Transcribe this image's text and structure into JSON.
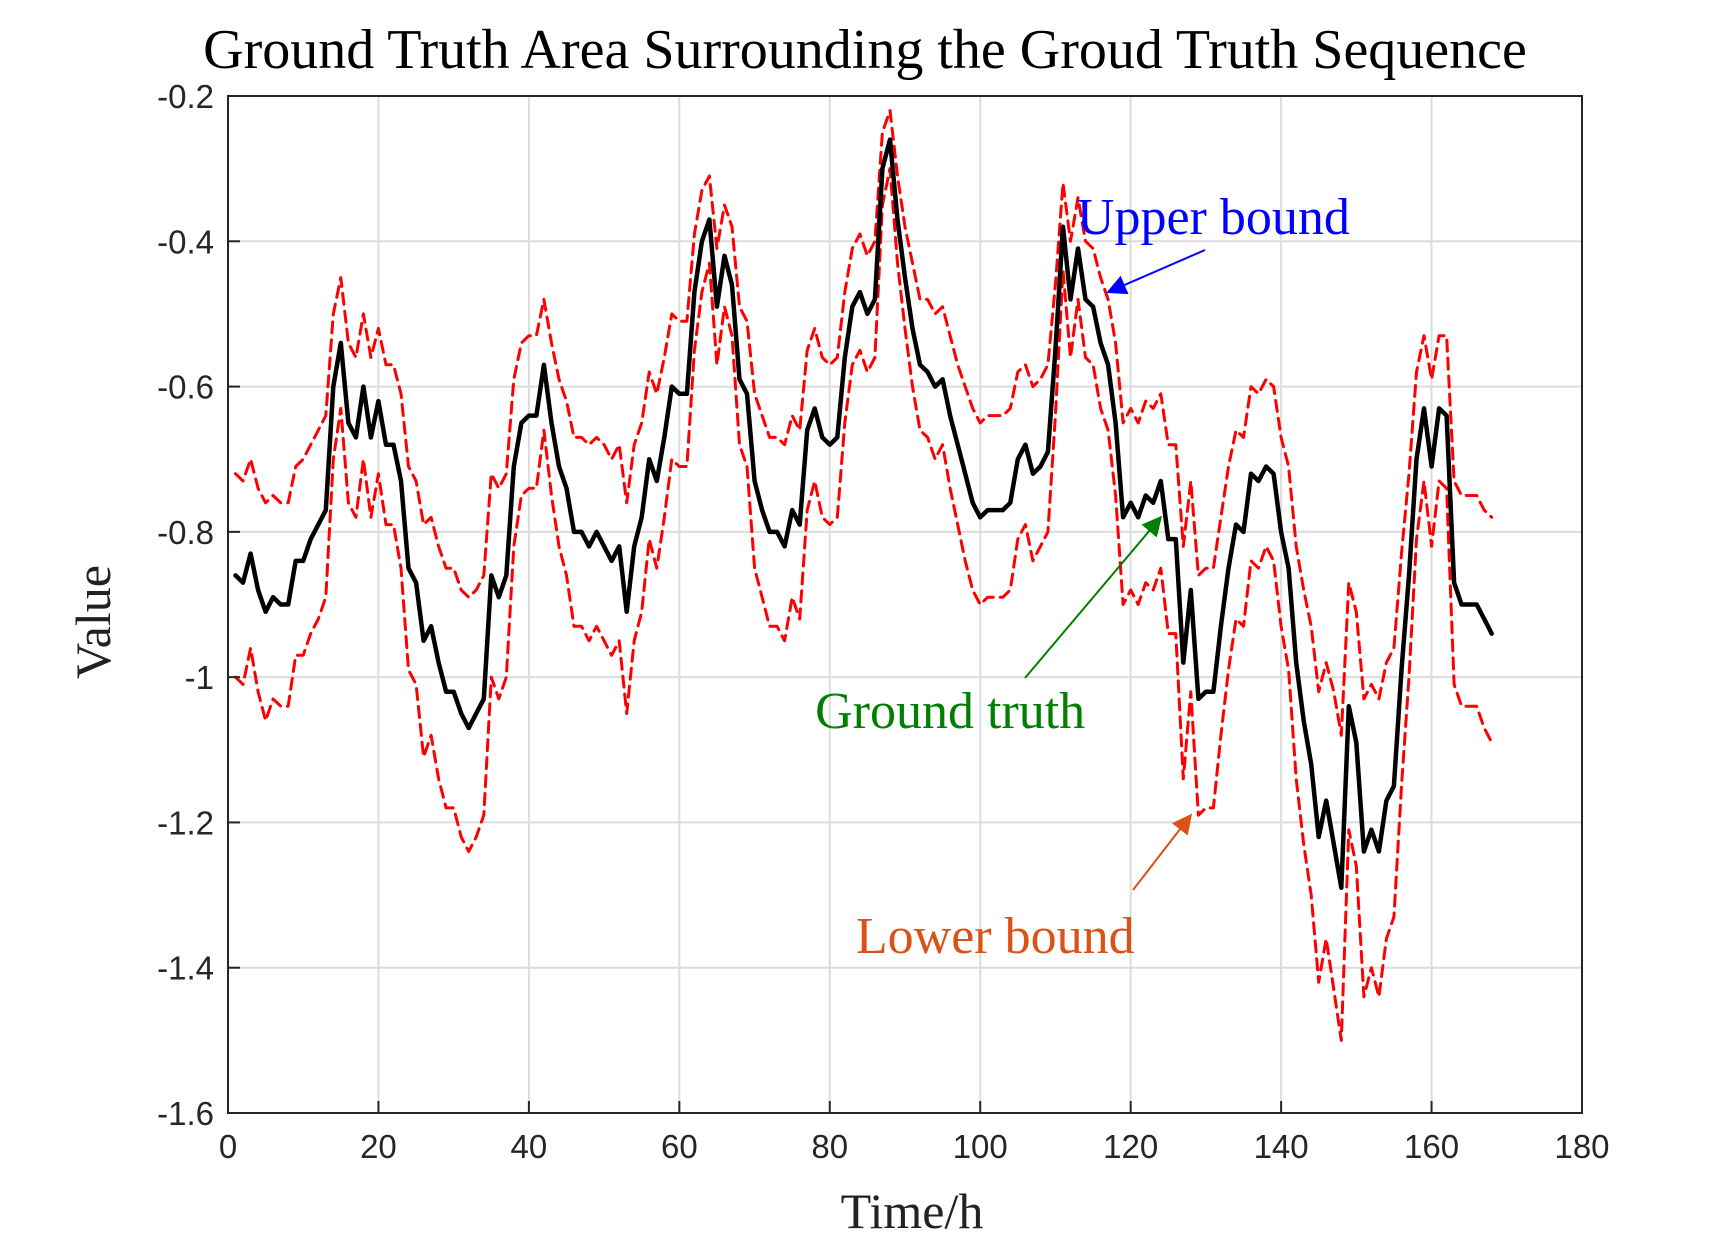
{
  "chart_data": {
    "type": "line",
    "title": "Ground Truth Area Surrounding the Groud Truth Sequence",
    "xlabel": "Time/h",
    "ylabel": "Value",
    "xlim": [
      0,
      180
    ],
    "ylim": [
      -1.6,
      -0.2
    ],
    "xticks": [
      0,
      20,
      40,
      60,
      80,
      100,
      120,
      140,
      160,
      180
    ],
    "yticks": [
      -1.6,
      -1.4,
      -1.2,
      -1,
      -0.8,
      -0.6,
      -0.4,
      -0.2
    ],
    "xtick_labels": [
      "0",
      "20",
      "40",
      "60",
      "80",
      "100",
      "120",
      "140",
      "160",
      "180"
    ],
    "ytick_labels": [
      "-1.6",
      "-1.4",
      "-1.2",
      "-1",
      "-0.8",
      "-0.6",
      "-0.4",
      "-0.2"
    ],
    "grid": true,
    "colors": {
      "ground_truth": "#000000",
      "bounds": "#ff0000",
      "upper_annot": "#0000ff",
      "truth_annot": "#008000",
      "lower_annot": "#d95319"
    },
    "series": [
      {
        "style": "solid",
        "x": [
          1,
          2,
          3,
          4,
          5,
          6,
          7,
          8,
          9,
          10,
          11,
          12,
          13,
          14,
          15,
          16,
          17,
          18,
          19,
          20,
          21,
          22,
          23,
          24,
          25,
          26,
          27,
          28,
          29,
          30,
          31,
          32,
          33,
          34,
          35,
          36,
          37,
          38,
          39,
          40,
          41,
          42,
          43,
          44,
          45,
          46,
          47,
          48,
          49,
          50,
          51,
          52,
          53,
          54,
          55,
          56,
          57,
          58,
          59,
          60,
          61,
          62,
          63,
          64,
          65,
          66,
          67,
          68,
          69,
          70,
          71,
          72,
          73,
          74,
          75,
          76,
          77,
          78,
          79,
          80,
          81,
          82,
          83,
          84,
          85,
          86,
          87,
          88,
          89,
          90,
          91,
          92,
          93,
          94,
          95,
          96,
          97,
          98,
          99,
          100,
          101,
          102,
          103,
          104,
          105,
          106,
          107,
          108,
          109,
          110,
          111,
          112,
          113,
          114,
          115,
          116,
          117,
          118,
          119,
          120,
          121,
          122,
          123,
          124,
          125,
          126,
          127,
          128,
          129,
          130,
          131,
          132,
          133,
          134,
          135,
          136,
          137,
          138,
          139,
          140,
          141,
          142,
          143,
          144,
          145,
          146,
          147,
          148,
          149,
          150,
          151,
          152,
          153,
          154,
          155,
          156,
          157,
          158,
          159,
          160,
          161,
          162,
          163,
          164,
          165,
          166,
          167,
          168
        ],
        "values": [
          -0.86,
          -0.87,
          -0.83,
          -0.88,
          -0.91,
          -0.89,
          -0.9,
          -0.9,
          -0.84,
          -0.84,
          -0.81,
          -0.79,
          -0.77,
          -0.6,
          -0.54,
          -0.65,
          -0.67,
          -0.6,
          -0.67,
          -0.62,
          -0.68,
          -0.68,
          -0.73,
          -0.85,
          -0.87,
          -0.95,
          -0.93,
          -0.98,
          -1.02,
          -1.02,
          -1.05,
          -1.07,
          -1.05,
          -1.03,
          -0.86,
          -0.89,
          -0.86,
          -0.71,
          -0.65,
          -0.64,
          -0.64,
          -0.57,
          -0.65,
          -0.71,
          -0.74,
          -0.8,
          -0.8,
          -0.82,
          -0.8,
          -0.82,
          -0.84,
          -0.82,
          -0.91,
          -0.82,
          -0.78,
          -0.7,
          -0.73,
          -0.67,
          -0.6,
          -0.61,
          -0.61,
          -0.47,
          -0.4,
          -0.37,
          -0.49,
          -0.42,
          -0.46,
          -0.59,
          -0.61,
          -0.73,
          -0.77,
          -0.8,
          -0.8,
          -0.82,
          -0.77,
          -0.79,
          -0.66,
          -0.63,
          -0.67,
          -0.68,
          -0.67,
          -0.56,
          -0.49,
          -0.47,
          -0.5,
          -0.48,
          -0.3,
          -0.26,
          -0.37,
          -0.45,
          -0.52,
          -0.57,
          -0.58,
          -0.6,
          -0.59,
          -0.64,
          -0.68,
          -0.72,
          -0.76,
          -0.78,
          -0.77,
          -0.77,
          -0.77,
          -0.76,
          -0.7,
          -0.68,
          -0.72,
          -0.71,
          -0.69,
          -0.55,
          -0.38,
          -0.48,
          -0.41,
          -0.48,
          -0.49,
          -0.54,
          -0.57,
          -0.65,
          -0.78,
          -0.76,
          -0.78,
          -0.75,
          -0.76,
          -0.73,
          -0.81,
          -0.81,
          -0.98,
          -0.88,
          -1.03,
          -1.02,
          -1.02,
          -0.93,
          -0.85,
          -0.79,
          -0.8,
          -0.72,
          -0.73,
          -0.71,
          -0.72,
          -0.8,
          -0.85,
          -0.98,
          -1.06,
          -1.12,
          -1.22,
          -1.17,
          -1.23,
          -1.29,
          -1.04,
          -1.09,
          -1.24,
          -1.21,
          -1.24,
          -1.17,
          -1.15,
          -0.99,
          -0.86,
          -0.7,
          -0.63,
          -0.71,
          -0.63,
          -0.64,
          -0.87,
          -0.9,
          -0.9,
          -0.9,
          -0.92,
          -0.94
        ]
      },
      {
        "style": "dashed",
        "x": [
          1,
          2,
          3,
          4,
          5,
          6,
          7,
          8,
          9,
          10,
          11,
          12,
          13,
          14,
          15,
          16,
          17,
          18,
          19,
          20,
          21,
          22,
          23,
          24,
          25,
          26,
          27,
          28,
          29,
          30,
          31,
          32,
          33,
          34,
          35,
          36,
          37,
          38,
          39,
          40,
          41,
          42,
          43,
          44,
          45,
          46,
          47,
          48,
          49,
          50,
          51,
          52,
          53,
          54,
          55,
          56,
          57,
          58,
          59,
          60,
          61,
          62,
          63,
          64,
          65,
          66,
          67,
          68,
          69,
          70,
          71,
          72,
          73,
          74,
          75,
          76,
          77,
          78,
          79,
          80,
          81,
          82,
          83,
          84,
          85,
          86,
          87,
          88,
          89,
          90,
          91,
          92,
          93,
          94,
          95,
          96,
          97,
          98,
          99,
          100,
          101,
          102,
          103,
          104,
          105,
          106,
          107,
          108,
          109,
          110,
          111,
          112,
          113,
          114,
          115,
          116,
          117,
          118,
          119,
          120,
          121,
          122,
          123,
          124,
          125,
          126,
          127,
          128,
          129,
          130,
          131,
          132,
          133,
          134,
          135,
          136,
          137,
          138,
          139,
          140,
          141,
          142,
          143,
          144,
          145,
          146,
          147,
          148,
          149,
          150,
          151,
          152,
          153,
          154,
          155,
          156,
          157,
          158,
          159,
          160,
          161,
          162,
          163,
          164,
          165,
          166,
          167,
          168
        ],
        "values": [
          -0.72,
          -0.73,
          -0.7,
          -0.74,
          -0.76,
          -0.75,
          -0.76,
          -0.76,
          -0.71,
          -0.7,
          -0.68,
          -0.66,
          -0.64,
          -0.5,
          -0.45,
          -0.54,
          -0.56,
          -0.5,
          -0.56,
          -0.52,
          -0.57,
          -0.57,
          -0.61,
          -0.71,
          -0.73,
          -0.79,
          -0.78,
          -0.82,
          -0.85,
          -0.85,
          -0.88,
          -0.89,
          -0.88,
          -0.86,
          -0.72,
          -0.74,
          -0.72,
          -0.59,
          -0.54,
          -0.53,
          -0.53,
          -0.48,
          -0.54,
          -0.59,
          -0.62,
          -0.67,
          -0.67,
          -0.68,
          -0.67,
          -0.68,
          -0.7,
          -0.68,
          -0.76,
          -0.68,
          -0.65,
          -0.58,
          -0.61,
          -0.56,
          -0.5,
          -0.51,
          -0.51,
          -0.39,
          -0.33,
          -0.31,
          -0.41,
          -0.35,
          -0.38,
          -0.49,
          -0.51,
          -0.61,
          -0.64,
          -0.67,
          -0.67,
          -0.68,
          -0.64,
          -0.66,
          -0.55,
          -0.52,
          -0.56,
          -0.57,
          -0.56,
          -0.47,
          -0.41,
          -0.39,
          -0.42,
          -0.4,
          -0.25,
          -0.22,
          -0.31,
          -0.38,
          -0.43,
          -0.48,
          -0.48,
          -0.5,
          -0.49,
          -0.53,
          -0.57,
          -0.6,
          -0.63,
          -0.65,
          -0.64,
          -0.64,
          -0.64,
          -0.63,
          -0.58,
          -0.57,
          -0.6,
          -0.59,
          -0.57,
          -0.46,
          -0.32,
          -0.4,
          -0.34,
          -0.4,
          -0.41,
          -0.45,
          -0.48,
          -0.54,
          -0.65,
          -0.63,
          -0.65,
          -0.62,
          -0.63,
          -0.61,
          -0.68,
          -0.68,
          -0.82,
          -0.73,
          -0.86,
          -0.85,
          -0.85,
          -0.78,
          -0.71,
          -0.66,
          -0.67,
          -0.6,
          -0.61,
          -0.59,
          -0.6,
          -0.67,
          -0.71,
          -0.82,
          -0.88,
          -0.93,
          -1.02,
          -0.98,
          -1.02,
          -1.08,
          -0.87,
          -0.91,
          -1.03,
          -1.01,
          -1.03,
          -0.98,
          -0.96,
          -0.83,
          -0.72,
          -0.58,
          -0.53,
          -0.59,
          -0.53,
          -0.53,
          -0.73,
          -0.75,
          -0.75,
          -0.75,
          -0.77,
          -0.78
        ]
      },
      {
        "style": "dashed",
        "x": [
          1,
          2,
          3,
          4,
          5,
          6,
          7,
          8,
          9,
          10,
          11,
          12,
          13,
          14,
          15,
          16,
          17,
          18,
          19,
          20,
          21,
          22,
          23,
          24,
          25,
          26,
          27,
          28,
          29,
          30,
          31,
          32,
          33,
          34,
          35,
          36,
          37,
          38,
          39,
          40,
          41,
          42,
          43,
          44,
          45,
          46,
          47,
          48,
          49,
          50,
          51,
          52,
          53,
          54,
          55,
          56,
          57,
          58,
          59,
          60,
          61,
          62,
          63,
          64,
          65,
          66,
          67,
          68,
          69,
          70,
          71,
          72,
          73,
          74,
          75,
          76,
          77,
          78,
          79,
          80,
          81,
          82,
          83,
          84,
          85,
          86,
          87,
          88,
          89,
          90,
          91,
          92,
          93,
          94,
          95,
          96,
          97,
          98,
          99,
          100,
          101,
          102,
          103,
          104,
          105,
          106,
          107,
          108,
          109,
          110,
          111,
          112,
          113,
          114,
          115,
          116,
          117,
          118,
          119,
          120,
          121,
          122,
          123,
          124,
          125,
          126,
          127,
          128,
          129,
          130,
          131,
          132,
          133,
          134,
          135,
          136,
          137,
          138,
          139,
          140,
          141,
          142,
          143,
          144,
          145,
          146,
          147,
          148,
          149,
          150,
          151,
          152,
          153,
          154,
          155,
          156,
          157,
          158,
          159,
          160,
          161,
          162,
          163,
          164,
          165,
          166,
          167,
          168
        ],
        "values": [
          -1,
          -1.01,
          -0.96,
          -1.02,
          -1.06,
          -1.03,
          -1.04,
          -1.04,
          -0.97,
          -0.97,
          -0.94,
          -0.92,
          -0.89,
          -0.7,
          -0.63,
          -0.76,
          -0.78,
          -0.7,
          -0.78,
          -0.72,
          -0.79,
          -0.79,
          -0.85,
          -0.99,
          -1.01,
          -1.11,
          -1.08,
          -1.14,
          -1.18,
          -1.18,
          -1.22,
          -1.24,
          -1.22,
          -1.19,
          -1,
          -1.03,
          -1,
          -0.82,
          -0.75,
          -0.74,
          -0.74,
          -0.66,
          -0.75,
          -0.82,
          -0.86,
          -0.93,
          -0.93,
          -0.95,
          -0.93,
          -0.95,
          -0.97,
          -0.95,
          -1.05,
          -0.95,
          -0.91,
          -0.81,
          -0.85,
          -0.78,
          -0.7,
          -0.71,
          -0.71,
          -0.55,
          -0.47,
          -0.43,
          -0.57,
          -0.49,
          -0.53,
          -0.68,
          -0.71,
          -0.85,
          -0.89,
          -0.93,
          -0.93,
          -0.95,
          -0.89,
          -0.92,
          -0.77,
          -0.73,
          -0.78,
          -0.79,
          -0.78,
          -0.65,
          -0.57,
          -0.55,
          -0.58,
          -0.56,
          -0.35,
          -0.3,
          -0.43,
          -0.52,
          -0.6,
          -0.66,
          -0.67,
          -0.7,
          -0.68,
          -0.74,
          -0.79,
          -0.84,
          -0.88,
          -0.9,
          -0.89,
          -0.89,
          -0.89,
          -0.88,
          -0.81,
          -0.79,
          -0.84,
          -0.82,
          -0.8,
          -0.64,
          -0.44,
          -0.56,
          -0.48,
          -0.56,
          -0.57,
          -0.63,
          -0.66,
          -0.75,
          -0.9,
          -0.88,
          -0.9,
          -0.87,
          -0.88,
          -0.85,
          -0.94,
          -0.94,
          -1.14,
          -1.02,
          -1.19,
          -1.18,
          -1.18,
          -1.08,
          -0.99,
          -0.92,
          -0.93,
          -0.84,
          -0.85,
          -0.82,
          -0.84,
          -0.93,
          -0.99,
          -1.14,
          -1.23,
          -1.3,
          -1.42,
          -1.36,
          -1.43,
          -1.5,
          -1.21,
          -1.26,
          -1.44,
          -1.4,
          -1.44,
          -1.36,
          -1.33,
          -1.15,
          -1,
          -0.81,
          -0.73,
          -0.82,
          -0.73,
          -0.74,
          -1.01,
          -1.04,
          -1.04,
          -1.04,
          -1.07,
          -1.09
        ]
      }
    ],
    "annotations": [
      {
        "text": "Upper bound",
        "x": 131,
        "y": -0.39,
        "arrow_to": [
          117,
          -0.47
        ]
      },
      {
        "text": "Ground truth",
        "x": 96,
        "y": -1.07,
        "arrow_to": [
          124,
          -0.78
        ]
      },
      {
        "text": "Lower bound",
        "x": 102,
        "y": -1.38,
        "arrow_to": [
          128,
          -1.19
        ]
      }
    ]
  }
}
